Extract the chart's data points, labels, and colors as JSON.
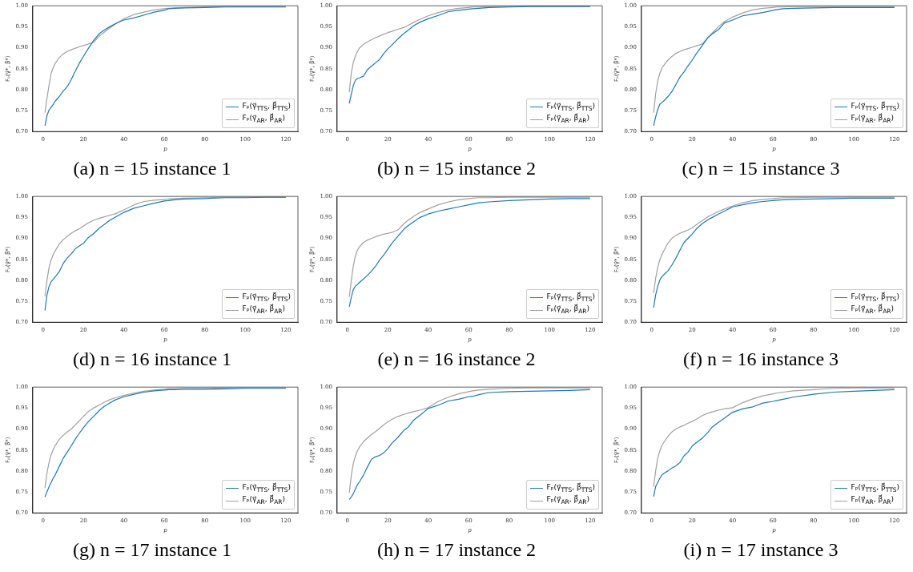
{
  "chart_data": [
    {
      "type": "line",
      "title": "(a) n = 15 instance 1",
      "xlabel": "p",
      "ylabel": "Fₚ(γ⃗*, β⃗*)",
      "legend": "bottom right",
      "grid": false,
      "xlim": [
        -5,
        126
      ],
      "xticks": [
        0,
        20,
        40,
        60,
        80,
        100,
        120
      ],
      "ylim": [
        0.7,
        1.0
      ],
      "yticks": [
        {
          "value": 0.7,
          "label": "0.70"
        },
        {
          "value": 0.75,
          "label": "0.75"
        },
        {
          "value": 0.8,
          "label": "0.80"
        },
        {
          "value": 0.85,
          "label": "0.85"
        },
        {
          "value": 0.9,
          "label": "0.90"
        },
        {
          "value": 0.95,
          "label": "0.95"
        },
        {
          "value": 1.0,
          "label": "1.00"
        }
      ],
      "x": [
        1,
        2,
        3,
        4,
        5,
        6,
        8,
        10,
        12,
        14,
        16,
        18,
        20,
        22,
        25,
        28,
        30,
        33,
        36,
        40,
        45,
        50,
        55,
        60,
        62,
        65,
        70,
        80,
        90,
        100,
        110,
        120
      ],
      "series": [
        {
          "name": "Fₚ(γ⃗$_{TTS}$, β⃗$_{TTS}$)",
          "color": "#1f77b4",
          "values": [
            0.714,
            0.738,
            0.751,
            0.758,
            0.764,
            0.772,
            0.783,
            0.796,
            0.807,
            0.824,
            0.844,
            0.863,
            0.879,
            0.895,
            0.917,
            0.934,
            0.941,
            0.95,
            0.958,
            0.966,
            0.971,
            0.978,
            0.985,
            0.989,
            0.993,
            0.994,
            0.995,
            0.996,
            0.997,
            0.997,
            0.997,
            0.997
          ]
        },
        {
          "name": "Fₚ(γ⃗$_{AR}$, β⃗$_{AR}$)",
          "color": "#a0a0a0",
          "values": [
            0.745,
            0.78,
            0.81,
            0.838,
            0.852,
            0.862,
            0.876,
            0.885,
            0.891,
            0.895,
            0.899,
            0.902,
            0.905,
            0.908,
            0.913,
            0.928,
            0.936,
            0.947,
            0.957,
            0.969,
            0.979,
            0.985,
            0.99,
            0.993,
            0.994,
            0.995,
            0.996,
            0.997,
            0.998,
            0.998,
            0.998,
            0.998
          ]
        }
      ]
    },
    {
      "type": "line",
      "title": "(b) n = 15 instance 2",
      "xlabel": "p",
      "ylabel": "Fₚ(γ⃗*, β⃗*)",
      "legend": "bottom right",
      "grid": false,
      "xlim": [
        -5,
        126
      ],
      "xticks": [
        0,
        20,
        40,
        60,
        80,
        100,
        120
      ],
      "ylim": [
        0.7,
        1.0
      ],
      "yticks": [
        {
          "value": 0.7,
          "label": "0.70"
        },
        {
          "value": 0.75,
          "label": "0.75"
        },
        {
          "value": 0.8,
          "label": "0.80"
        },
        {
          "value": 0.85,
          "label": "0.85"
        },
        {
          "value": 0.9,
          "label": "0.90"
        },
        {
          "value": 0.95,
          "label": "0.95"
        },
        {
          "value": 1.0,
          "label": "1.00"
        }
      ],
      "x": [
        1,
        2,
        3,
        4,
        5,
        6,
        8,
        10,
        12,
        14,
        16,
        18,
        20,
        22,
        25,
        28,
        30,
        33,
        36,
        40,
        45,
        50,
        55,
        60,
        62,
        65,
        70,
        80,
        90,
        100,
        110,
        120
      ],
      "series": [
        {
          "name": "Fₚ(γ⃗$_{TTS}$, β⃗$_{TTS}$)",
          "color": "#1f77b4",
          "values": [
            0.767,
            0.79,
            0.81,
            0.822,
            0.827,
            0.828,
            0.832,
            0.848,
            0.856,
            0.864,
            0.872,
            0.886,
            0.897,
            0.906,
            0.921,
            0.934,
            0.941,
            0.953,
            0.961,
            0.969,
            0.977,
            0.986,
            0.989,
            0.992,
            0.993,
            0.994,
            0.996,
            0.997,
            0.998,
            0.998,
            0.998,
            0.998
          ]
        },
        {
          "name": "Fₚ(γ⃗$_{AR}$, β⃗$_{AR}$)",
          "color": "#a0a0a0",
          "values": [
            0.794,
            0.84,
            0.865,
            0.88,
            0.891,
            0.899,
            0.908,
            0.914,
            0.919,
            0.924,
            0.928,
            0.932,
            0.936,
            0.939,
            0.944,
            0.948,
            0.953,
            0.961,
            0.968,
            0.976,
            0.984,
            0.99,
            0.994,
            0.996,
            0.997,
            0.997,
            0.998,
            0.998,
            0.999,
            0.999,
            0.999,
            0.999
          ]
        }
      ]
    },
    {
      "type": "line",
      "title": "(c) n = 15 instance 3",
      "xlabel": "p",
      "ylabel": "Fₚ(γ⃗*, β⃗*)",
      "legend": "bottom right",
      "grid": false,
      "xlim": [
        -5,
        126
      ],
      "xticks": [
        0,
        20,
        40,
        60,
        80,
        100,
        120
      ],
      "ylim": [
        0.7,
        1.0
      ],
      "yticks": [
        {
          "value": 0.7,
          "label": "0.70"
        },
        {
          "value": 0.75,
          "label": "0.75"
        },
        {
          "value": 0.8,
          "label": "0.80"
        },
        {
          "value": 0.85,
          "label": "0.85"
        },
        {
          "value": 0.9,
          "label": "0.90"
        },
        {
          "value": 0.95,
          "label": "0.95"
        },
        {
          "value": 1.0,
          "label": "1.00"
        }
      ],
      "x": [
        1,
        2,
        3,
        4,
        5,
        6,
        8,
        10,
        12,
        14,
        16,
        18,
        20,
        22,
        25,
        28,
        30,
        33,
        36,
        40,
        45,
        50,
        55,
        60,
        62,
        65,
        70,
        80,
        90,
        100,
        110,
        120
      ],
      "series": [
        {
          "name": "Fₚ(γ⃗$_{TTS}$, β⃗$_{TTS}$)",
          "color": "#1f77b4",
          "values": [
            0.714,
            0.735,
            0.752,
            0.765,
            0.769,
            0.773,
            0.783,
            0.795,
            0.812,
            0.83,
            0.842,
            0.857,
            0.87,
            0.885,
            0.905,
            0.925,
            0.933,
            0.943,
            0.959,
            0.966,
            0.976,
            0.98,
            0.984,
            0.989,
            0.991,
            0.993,
            0.994,
            0.995,
            0.996,
            0.996,
            0.996,
            0.996
          ]
        },
        {
          "name": "Fₚ(γ⃗$_{AR}$, β⃗$_{AR}$)",
          "color": "#a0a0a0",
          "values": [
            0.745,
            0.79,
            0.82,
            0.838,
            0.85,
            0.858,
            0.87,
            0.879,
            0.886,
            0.891,
            0.895,
            0.898,
            0.901,
            0.904,
            0.909,
            0.925,
            0.935,
            0.95,
            0.962,
            0.973,
            0.983,
            0.99,
            0.994,
            0.996,
            0.997,
            0.997,
            0.998,
            0.998,
            0.998,
            0.998,
            0.998,
            0.998
          ]
        }
      ]
    },
    {
      "type": "line",
      "title": "(d) n = 16 instance 1",
      "xlabel": "p",
      "ylabel": "Fₚ(γ⃗*, β⃗*)",
      "legend": "bottom right",
      "grid": false,
      "xlim": [
        -5,
        126
      ],
      "xticks": [
        0,
        20,
        40,
        60,
        80,
        100,
        120
      ],
      "ylim": [
        0.7,
        1.0
      ],
      "yticks": [
        {
          "value": 0.7,
          "label": "0.70"
        },
        {
          "value": 0.75,
          "label": "0.75"
        },
        {
          "value": 0.8,
          "label": "0.80"
        },
        {
          "value": 0.85,
          "label": "0.85"
        },
        {
          "value": 0.9,
          "label": "0.90"
        },
        {
          "value": 0.95,
          "label": "0.95"
        },
        {
          "value": 1.0,
          "label": "1.00"
        }
      ],
      "x": [
        1,
        2,
        3,
        4,
        5,
        6,
        8,
        10,
        12,
        14,
        16,
        18,
        20,
        22,
        25,
        28,
        30,
        33,
        36,
        40,
        45,
        50,
        55,
        60,
        62,
        65,
        70,
        80,
        90,
        100,
        110,
        120
      ],
      "series": [
        {
          "name": "Fₚ(γ⃗$_{TTS}$, β⃗$_{TTS}$)",
          "color": "#1f77b4",
          "values": [
            0.728,
            0.765,
            0.785,
            0.796,
            0.802,
            0.808,
            0.82,
            0.84,
            0.853,
            0.863,
            0.875,
            0.882,
            0.888,
            0.9,
            0.911,
            0.925,
            0.932,
            0.943,
            0.951,
            0.962,
            0.972,
            0.978,
            0.984,
            0.989,
            0.99,
            0.992,
            0.994,
            0.995,
            0.997,
            0.997,
            0.998,
            0.998
          ]
        },
        {
          "name": "Fₚ(γ⃗$_{AR}$, β⃗$_{AR}$)",
          "color": "#a0a0a0",
          "values": [
            0.762,
            0.8,
            0.83,
            0.848,
            0.86,
            0.87,
            0.886,
            0.897,
            0.905,
            0.912,
            0.918,
            0.923,
            0.929,
            0.936,
            0.943,
            0.948,
            0.951,
            0.955,
            0.959,
            0.968,
            0.98,
            0.988,
            0.991,
            0.993,
            0.994,
            0.995,
            0.996,
            0.997,
            0.998,
            0.998,
            0.998,
            0.998
          ]
        }
      ]
    },
    {
      "type": "line",
      "title": "(e) n = 16 instance 2",
      "xlabel": "p",
      "ylabel": "Fₚ(γ⃗*, β⃗*)",
      "legend": "bottom right",
      "grid": false,
      "xlim": [
        -5,
        126
      ],
      "xticks": [
        0,
        20,
        40,
        60,
        80,
        100,
        120
      ],
      "ylim": [
        0.7,
        1.0
      ],
      "yticks": [
        {
          "value": 0.7,
          "label": "0.70"
        },
        {
          "value": 0.75,
          "label": "0.75"
        },
        {
          "value": 0.8,
          "label": "0.80"
        },
        {
          "value": 0.85,
          "label": "0.85"
        },
        {
          "value": 0.9,
          "label": "0.90"
        },
        {
          "value": 0.95,
          "label": "0.95"
        },
        {
          "value": 1.0,
          "label": "1.00"
        }
      ],
      "x": [
        1,
        2,
        3,
        4,
        5,
        6,
        8,
        10,
        12,
        14,
        16,
        18,
        20,
        22,
        25,
        28,
        30,
        33,
        36,
        40,
        45,
        50,
        55,
        60,
        62,
        65,
        70,
        80,
        90,
        100,
        110,
        120
      ],
      "series": [
        {
          "name": "Fₚ(γ⃗$_{TTS}$, β⃗$_{TTS}$)",
          "color": "#1f77b4",
          "values": [
            0.737,
            0.76,
            0.778,
            0.786,
            0.79,
            0.795,
            0.803,
            0.812,
            0.822,
            0.834,
            0.848,
            0.86,
            0.874,
            0.888,
            0.905,
            0.922,
            0.93,
            0.94,
            0.95,
            0.958,
            0.965,
            0.97,
            0.975,
            0.98,
            0.982,
            0.985,
            0.987,
            0.99,
            0.992,
            0.994,
            0.995,
            0.995
          ]
        },
        {
          "name": "Fₚ(γ⃗$_{AR}$, β⃗$_{AR}$)",
          "color": "#a0a0a0",
          "values": [
            0.76,
            0.8,
            0.835,
            0.858,
            0.872,
            0.88,
            0.89,
            0.896,
            0.9,
            0.904,
            0.907,
            0.91,
            0.912,
            0.914,
            0.92,
            0.935,
            0.943,
            0.953,
            0.962,
            0.97,
            0.98,
            0.987,
            0.992,
            0.995,
            0.996,
            0.997,
            0.997,
            0.998,
            0.998,
            0.998,
            0.998,
            0.998
          ]
        }
      ]
    },
    {
      "type": "line",
      "title": "(f) n = 16 instance 3",
      "xlabel": "p",
      "ylabel": "Fₚ(γ⃗*, β⃗*)",
      "legend": "bottom right",
      "grid": false,
      "xlim": [
        -5,
        126
      ],
      "xticks": [
        0,
        20,
        40,
        60,
        80,
        100,
        120
      ],
      "ylim": [
        0.7,
        1.0
      ],
      "yticks": [
        {
          "value": 0.7,
          "label": "0.70"
        },
        {
          "value": 0.75,
          "label": "0.75"
        },
        {
          "value": 0.8,
          "label": "0.80"
        },
        {
          "value": 0.85,
          "label": "0.85"
        },
        {
          "value": 0.9,
          "label": "0.90"
        },
        {
          "value": 0.95,
          "label": "0.95"
        },
        {
          "value": 1.0,
          "label": "1.00"
        }
      ],
      "x": [
        1,
        2,
        3,
        4,
        5,
        6,
        8,
        10,
        12,
        14,
        16,
        18,
        20,
        22,
        25,
        28,
        30,
        33,
        36,
        40,
        45,
        50,
        55,
        60,
        62,
        65,
        70,
        80,
        90,
        100,
        110,
        120
      ],
      "series": [
        {
          "name": "Fₚ(γ⃗$_{TTS}$, β⃗$_{TTS}$)",
          "color": "#1f77b4",
          "values": [
            0.735,
            0.765,
            0.785,
            0.8,
            0.808,
            0.813,
            0.822,
            0.836,
            0.853,
            0.872,
            0.89,
            0.9,
            0.91,
            0.922,
            0.935,
            0.945,
            0.95,
            0.958,
            0.965,
            0.975,
            0.98,
            0.985,
            0.988,
            0.99,
            0.991,
            0.992,
            0.993,
            0.994,
            0.995,
            0.996,
            0.996,
            0.996
          ]
        },
        {
          "name": "Fₚ(γ⃗$_{AR}$, β⃗$_{AR}$)",
          "color": "#a0a0a0",
          "values": [
            0.77,
            0.805,
            0.83,
            0.848,
            0.86,
            0.87,
            0.888,
            0.9,
            0.907,
            0.912,
            0.916,
            0.92,
            0.925,
            0.932,
            0.942,
            0.952,
            0.957,
            0.964,
            0.97,
            0.977,
            0.985,
            0.99,
            0.993,
            0.995,
            0.996,
            0.997,
            0.997,
            0.998,
            0.998,
            0.998,
            0.998,
            0.998
          ]
        }
      ]
    },
    {
      "type": "line",
      "title": "(g) n = 17 instance 1",
      "xlabel": "p",
      "ylabel": "Fₚ(γ⃗*, β⃗*)",
      "legend": "bottom right",
      "grid": false,
      "xlim": [
        -5,
        126
      ],
      "xticks": [
        0,
        20,
        40,
        60,
        80,
        100,
        120
      ],
      "ylim": [
        0.7,
        1.0
      ],
      "yticks": [
        {
          "value": 0.7,
          "label": "0.70"
        },
        {
          "value": 0.75,
          "label": "0.75"
        },
        {
          "value": 0.8,
          "label": "0.80"
        },
        {
          "value": 0.85,
          "label": "0.85"
        },
        {
          "value": 0.9,
          "label": "0.90"
        },
        {
          "value": 0.95,
          "label": "0.95"
        },
        {
          "value": 1.0,
          "label": "1.00"
        }
      ],
      "x": [
        1,
        2,
        3,
        4,
        5,
        6,
        8,
        10,
        12,
        14,
        16,
        18,
        20,
        22,
        25,
        28,
        30,
        33,
        36,
        40,
        45,
        50,
        55,
        60,
        62,
        65,
        70,
        80,
        90,
        100,
        110,
        120
      ],
      "series": [
        {
          "name": "Fₚ(γ⃗$_{TTS}$, β⃗$_{TTS}$)",
          "color": "#1f77b4",
          "values": [
            0.738,
            0.75,
            0.762,
            0.772,
            0.782,
            0.79,
            0.81,
            0.83,
            0.845,
            0.86,
            0.876,
            0.89,
            0.903,
            0.915,
            0.93,
            0.945,
            0.953,
            0.962,
            0.97,
            0.977,
            0.983,
            0.988,
            0.991,
            0.993,
            0.994,
            0.994,
            0.995,
            0.995,
            0.996,
            0.997,
            0.997,
            0.997
          ]
        },
        {
          "name": "Fₚ(γ⃗$_{AR}$, β⃗$_{AR}$)",
          "color": "#a0a0a0",
          "values": [
            0.76,
            0.795,
            0.82,
            0.838,
            0.85,
            0.86,
            0.875,
            0.885,
            0.893,
            0.9,
            0.91,
            0.92,
            0.93,
            0.94,
            0.95,
            0.958,
            0.963,
            0.97,
            0.975,
            0.98,
            0.986,
            0.99,
            0.993,
            0.995,
            0.996,
            0.996,
            0.997,
            0.997,
            0.998,
            0.998,
            0.998,
            0.998
          ]
        }
      ]
    },
    {
      "type": "line",
      "title": "(h) n = 17 instance 2",
      "xlabel": "p",
      "ylabel": "Fₚ(γ⃗*, β⃗*)",
      "legend": "bottom right",
      "grid": false,
      "xlim": [
        -5,
        126
      ],
      "xticks": [
        0,
        20,
        40,
        60,
        80,
        100,
        120
      ],
      "ylim": [
        0.7,
        1.0
      ],
      "yticks": [
        {
          "value": 0.7,
          "label": "0.70"
        },
        {
          "value": 0.75,
          "label": "0.75"
        },
        {
          "value": 0.8,
          "label": "0.80"
        },
        {
          "value": 0.85,
          "label": "0.85"
        },
        {
          "value": 0.9,
          "label": "0.90"
        },
        {
          "value": 0.95,
          "label": "0.95"
        },
        {
          "value": 1.0,
          "label": "1.00"
        }
      ],
      "x": [
        1,
        2,
        3,
        4,
        5,
        6,
        8,
        10,
        12,
        14,
        16,
        18,
        20,
        22,
        25,
        28,
        30,
        33,
        36,
        40,
        45,
        50,
        55,
        60,
        62,
        65,
        70,
        80,
        90,
        100,
        110,
        120
      ],
      "series": [
        {
          "name": "Fₚ(γ⃗$_{TTS}$, β⃗$_{TTS}$)",
          "color": "#1f77b4",
          "values": [
            0.732,
            0.738,
            0.746,
            0.757,
            0.767,
            0.774,
            0.79,
            0.81,
            0.828,
            0.834,
            0.837,
            0.843,
            0.853,
            0.866,
            0.88,
            0.897,
            0.904,
            0.922,
            0.933,
            0.949,
            0.957,
            0.967,
            0.971,
            0.977,
            0.978,
            0.982,
            0.987,
            0.989,
            0.99,
            0.991,
            0.992,
            0.994
          ]
        },
        {
          "name": "Fₚ(γ⃗$_{AR}$, β⃗$_{AR}$)",
          "color": "#a0a0a0",
          "values": [
            0.748,
            0.79,
            0.818,
            0.835,
            0.848,
            0.857,
            0.87,
            0.879,
            0.887,
            0.894,
            0.902,
            0.91,
            0.917,
            0.923,
            0.93,
            0.935,
            0.938,
            0.942,
            0.945,
            0.951,
            0.966,
            0.976,
            0.984,
            0.989,
            0.991,
            0.993,
            0.995,
            0.997,
            0.998,
            0.998,
            0.998,
            0.998
          ]
        }
      ]
    },
    {
      "type": "line",
      "title": "(i) n = 17 instance 3",
      "xlabel": "p",
      "ylabel": "Fₚ(γ⃗*, β⃗*)",
      "legend": "bottom right",
      "grid": false,
      "xlim": [
        -5,
        126
      ],
      "xticks": [
        0,
        20,
        40,
        60,
        80,
        100,
        120
      ],
      "ylim": [
        0.7,
        1.0
      ],
      "yticks": [
        {
          "value": 0.7,
          "label": "0.70"
        },
        {
          "value": 0.75,
          "label": "0.75"
        },
        {
          "value": 0.8,
          "label": "0.80"
        },
        {
          "value": 0.85,
          "label": "0.85"
        },
        {
          "value": 0.9,
          "label": "0.90"
        },
        {
          "value": 0.95,
          "label": "0.95"
        },
        {
          "value": 1.0,
          "label": "1.00"
        }
      ],
      "x": [
        1,
        2,
        3,
        4,
        5,
        6,
        8,
        10,
        12,
        14,
        16,
        18,
        20,
        22,
        25,
        28,
        30,
        33,
        36,
        40,
        45,
        50,
        55,
        60,
        62,
        65,
        70,
        80,
        90,
        100,
        110,
        120
      ],
      "series": [
        {
          "name": "Fₚ(γ⃗$_{TTS}$, β⃗$_{TTS}$)",
          "color": "#1f77b4",
          "values": [
            0.739,
            0.763,
            0.772,
            0.782,
            0.79,
            0.794,
            0.8,
            0.807,
            0.812,
            0.82,
            0.836,
            0.845,
            0.859,
            0.867,
            0.878,
            0.893,
            0.905,
            0.916,
            0.926,
            0.94,
            0.948,
            0.953,
            0.962,
            0.966,
            0.968,
            0.971,
            0.976,
            0.983,
            0.988,
            0.99,
            0.992,
            0.994
          ]
        },
        {
          "name": "Fₚ(γ⃗$_{AR}$, β⃗$_{AR}$)",
          "color": "#a0a0a0",
          "values": [
            0.763,
            0.8,
            0.83,
            0.847,
            0.86,
            0.868,
            0.882,
            0.893,
            0.9,
            0.905,
            0.909,
            0.914,
            0.918,
            0.923,
            0.932,
            0.938,
            0.941,
            0.945,
            0.948,
            0.951,
            0.963,
            0.972,
            0.979,
            0.984,
            0.986,
            0.988,
            0.991,
            0.994,
            0.997,
            0.998,
            0.998,
            0.998
          ]
        }
      ]
    }
  ]
}
